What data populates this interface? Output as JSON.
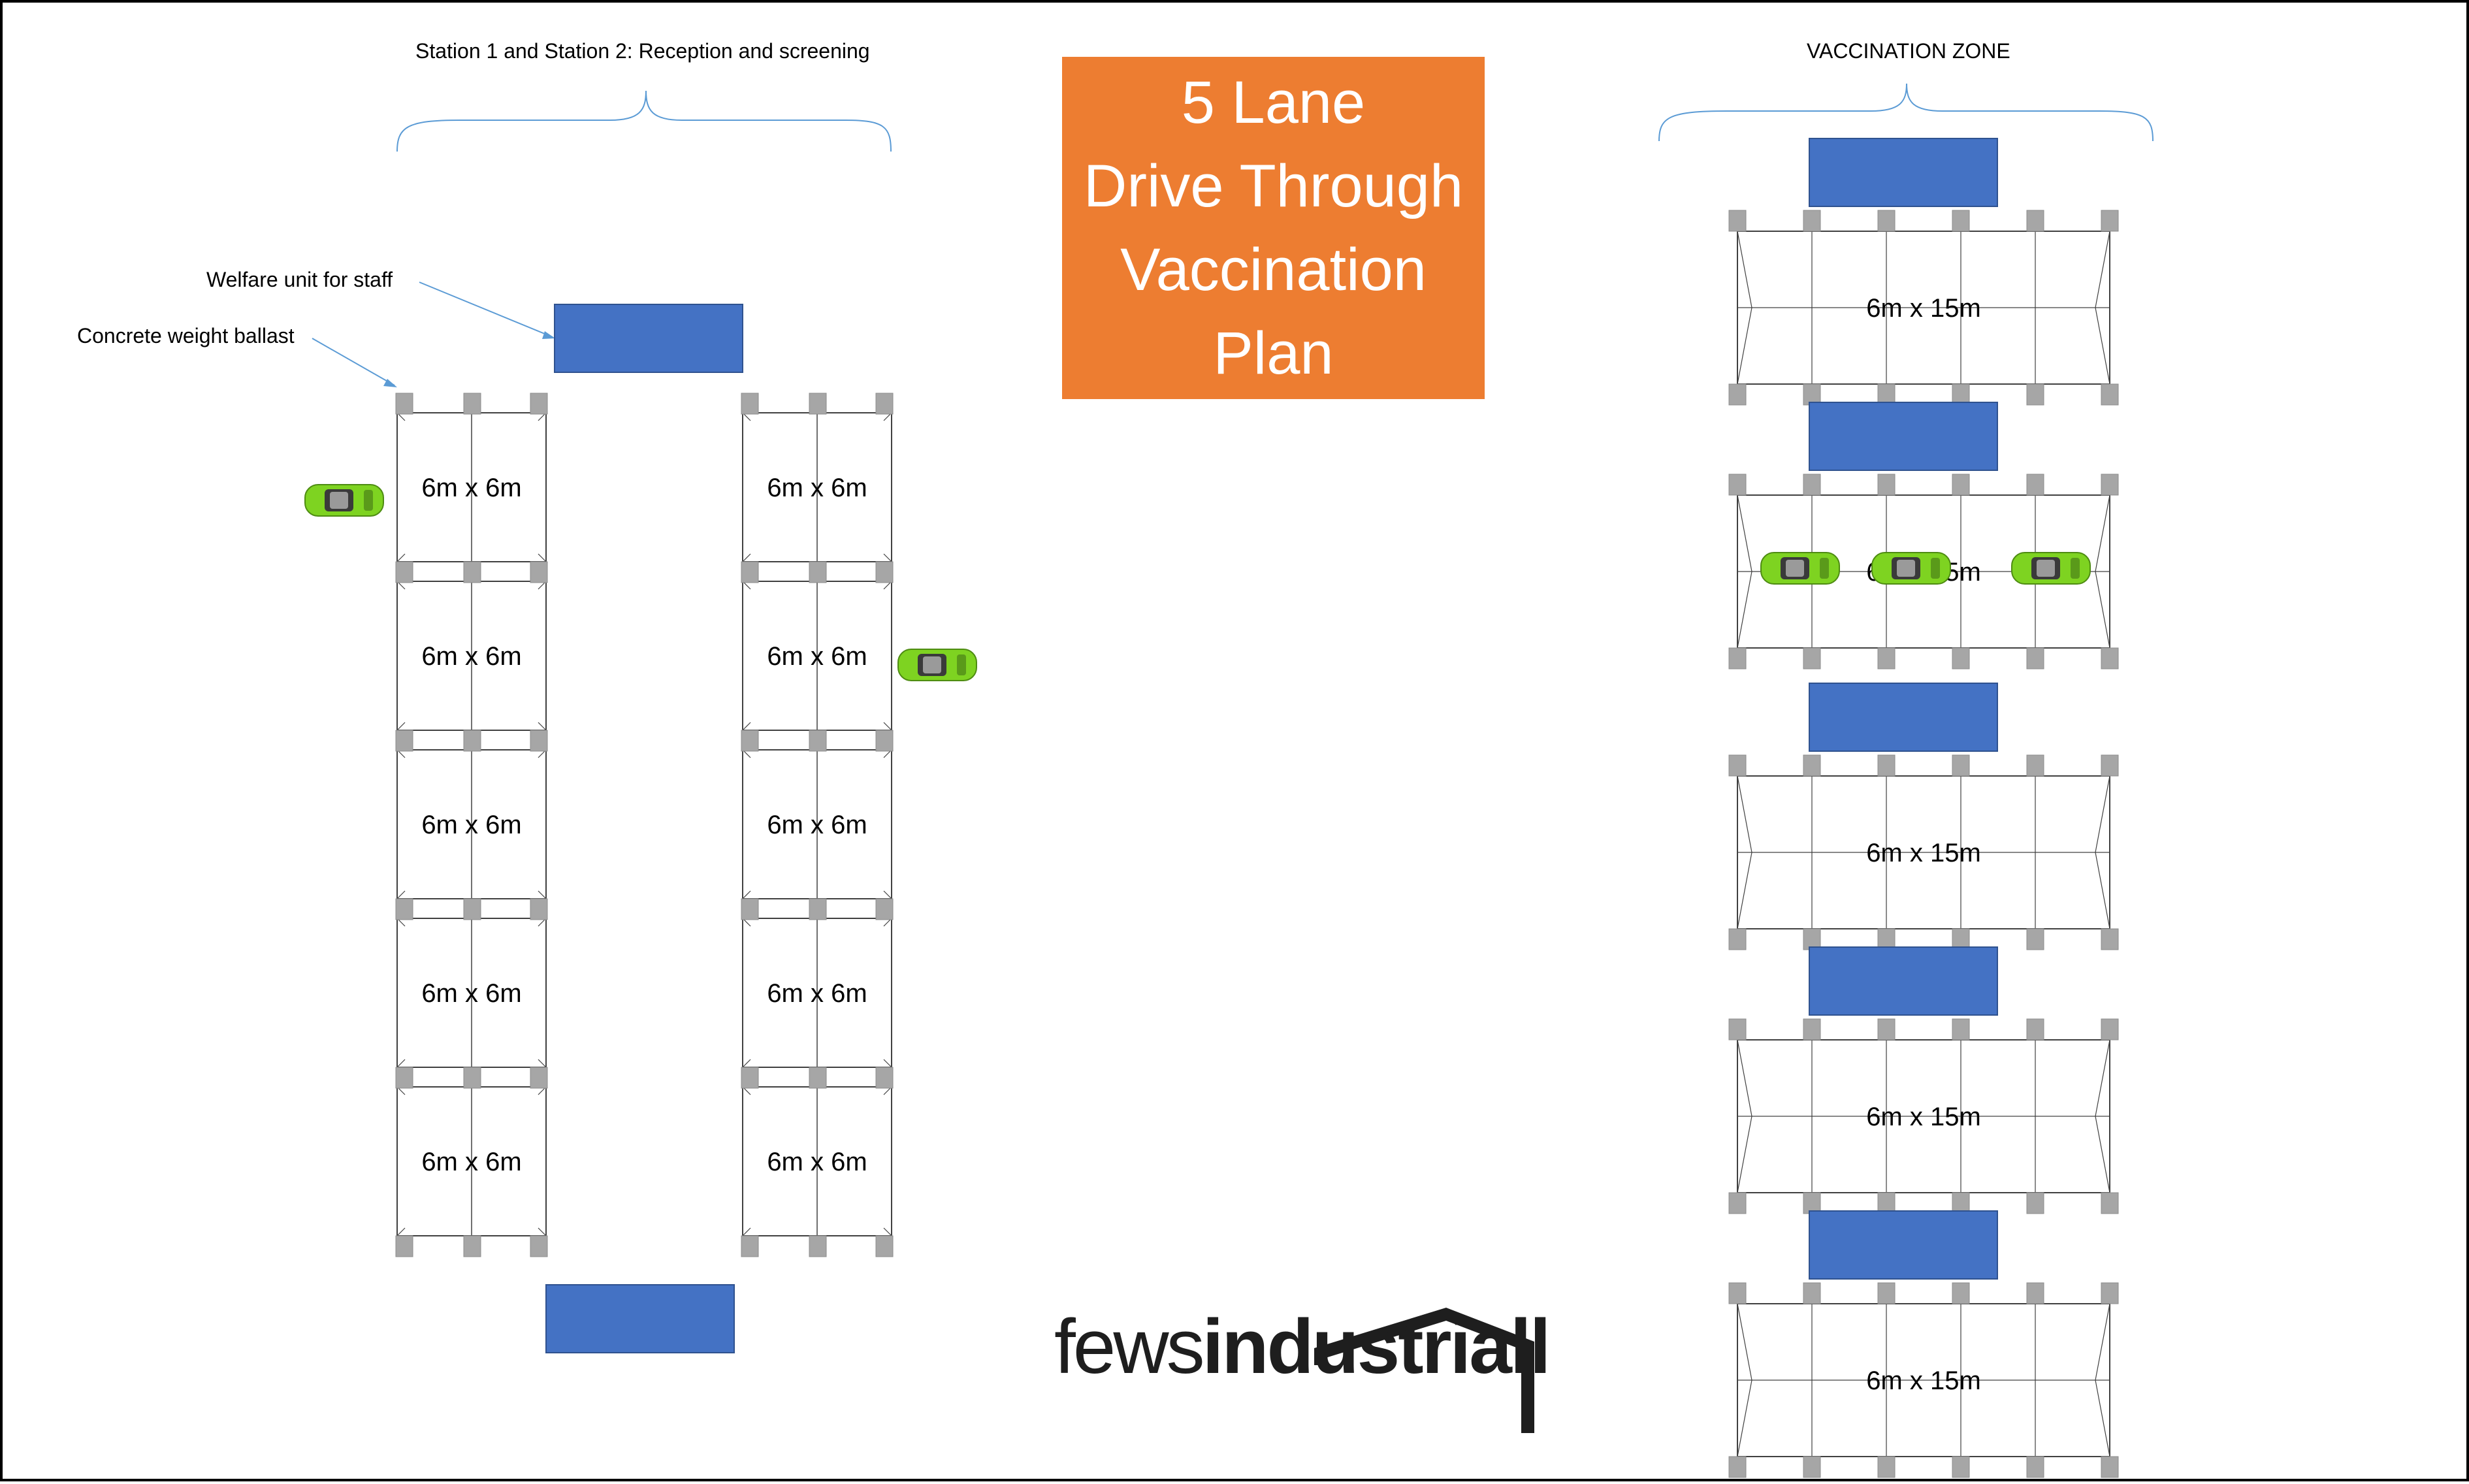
{
  "title": {
    "lines": [
      "5 Lane",
      "Drive Through",
      "Vaccination",
      "Plan"
    ],
    "bg_color": "#ed7d31",
    "text_color": "#ffffff"
  },
  "labels": {
    "reception": "Station 1 and Station 2: Reception and screening",
    "vaccination_zone": "VACCINATION ZONE",
    "welfare_unit": "Welfare unit for staff",
    "ballast": "Concrete weight ballast"
  },
  "marquees": {
    "left_size": "6m x 6m",
    "right_size": "6m x 15m",
    "left_column_count": 5,
    "right_column_count": 5
  },
  "logo": {
    "light": "fews",
    "bold": "industriall"
  },
  "colors": {
    "unit_blue": "#4472c4",
    "ballast_gray": "#a6a6a6",
    "car_green": "#7ed321",
    "bracket_blue": "#5b9bd5",
    "outline": "#404040"
  }
}
